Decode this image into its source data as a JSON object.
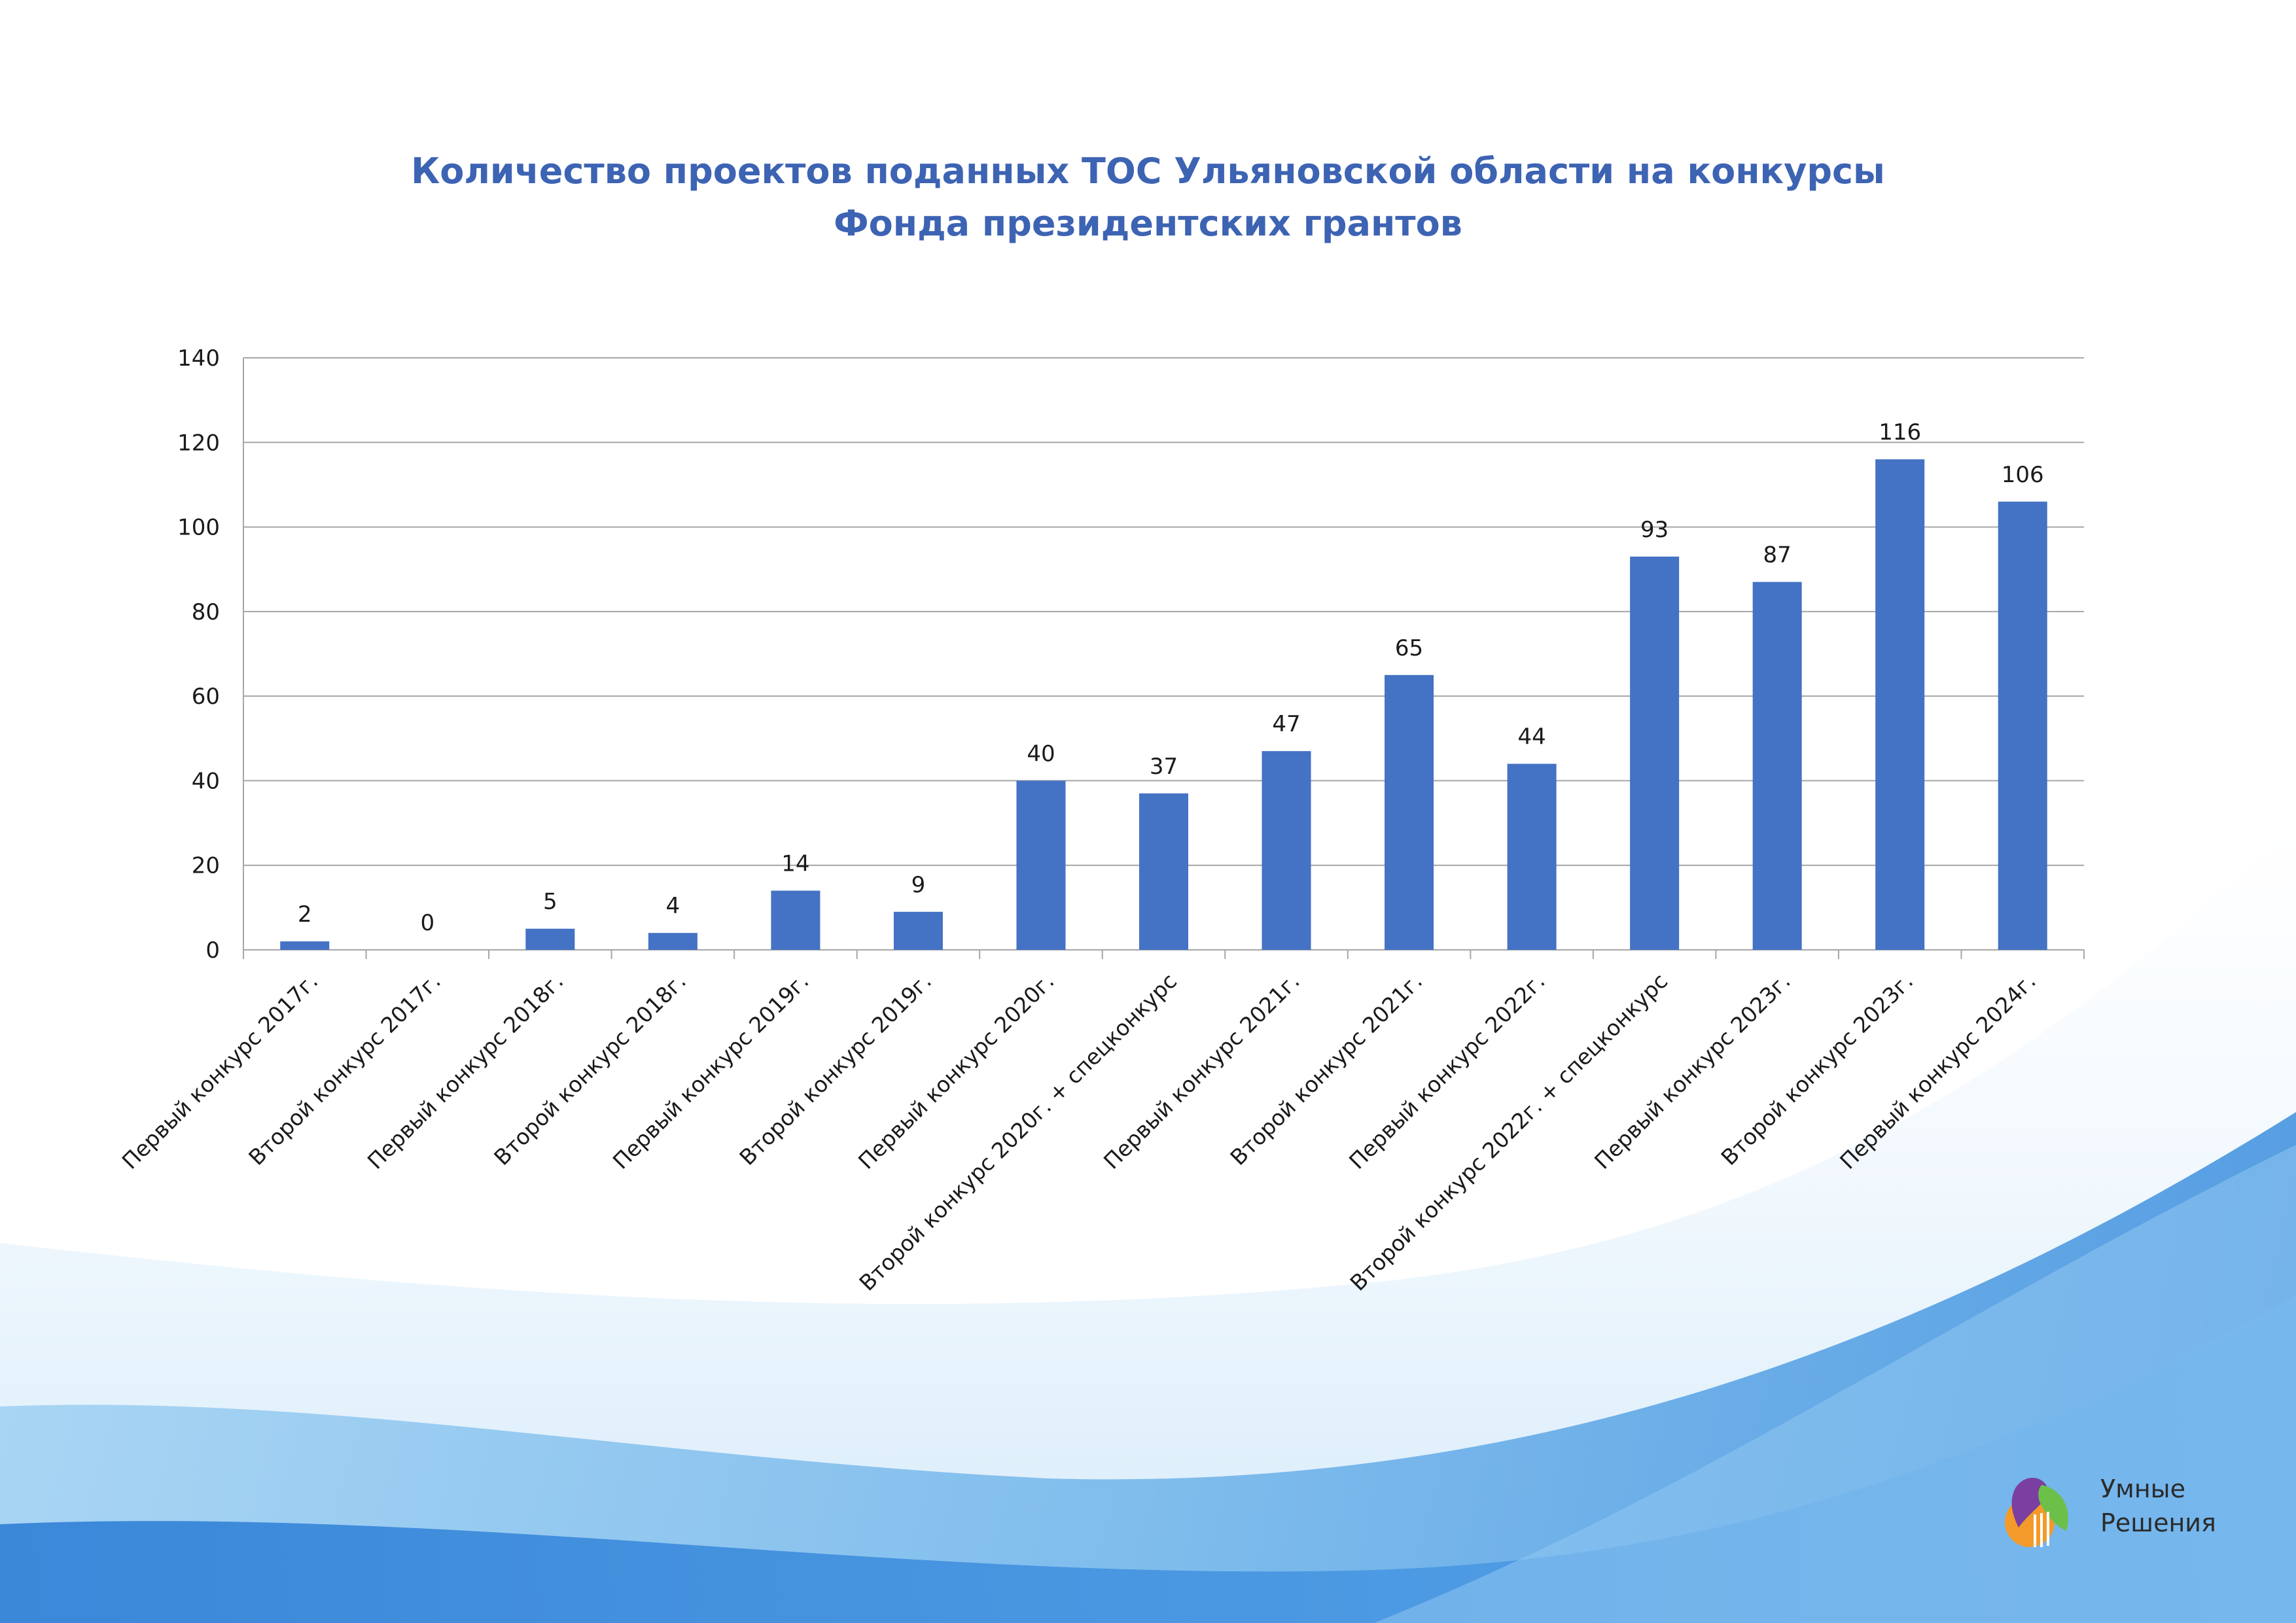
{
  "title_line1": "Количество проектов поданных ТОС Ульяновской области на конкурсы",
  "title_line2": "Фонда президентских грантов",
  "logo": {
    "line1": "Умные",
    "line2": "Решения"
  },
  "colors": {
    "bar": "#4472c4",
    "title": "#3d63b3",
    "grid": "#a6a6a6",
    "wave": "#3f8fdc"
  },
  "chart_data": {
    "type": "bar",
    "title": "Количество проектов поданных ТОС Ульяновской области на конкурсы Фонда президентских грантов",
    "xlabel": "",
    "ylabel": "",
    "ylim": [
      0,
      140
    ],
    "yticks": [
      0,
      20,
      40,
      60,
      80,
      100,
      120,
      140
    ],
    "grid": true,
    "legend": "none",
    "categories": [
      "Первый конкурс 2017г.",
      "Второй конкурс 2017г.",
      "Первый конкурс 2018г.",
      "Второй конкурс 2018г.",
      "Первый конкурс 2019г.",
      "Второй конкурс 2019г.",
      "Первый конкурс 2020г.",
      "Второй конкурс 2020г. + спецконкурс",
      "Первый конкурс 2021г.",
      "Второй конкурс 2021г.",
      "Первый конкурс 2022г.",
      "Второй конкурс 2022г. + спецконкурс",
      "Первый конкурс 2023г.",
      "Второй конкурс 2023г.",
      "Первый конкурс 2024г."
    ],
    "values": [
      2,
      0,
      5,
      4,
      14,
      9,
      40,
      37,
      47,
      65,
      44,
      93,
      87,
      116,
      106
    ]
  }
}
